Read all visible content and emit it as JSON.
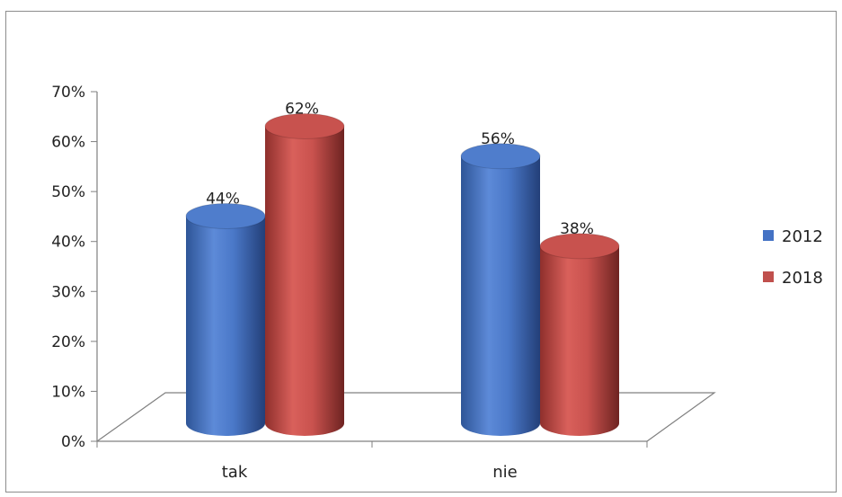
{
  "chart_data": {
    "type": "bar",
    "style": "3d-cylinder",
    "categories": [
      "tak",
      "nie"
    ],
    "series": [
      {
        "name": "2012",
        "values": [
          44,
          56
        ],
        "color": "#4472c4"
      },
      {
        "name": "2018",
        "values": [
          62,
          38
        ],
        "color": "#c0504d"
      }
    ],
    "data_labels": [
      [
        "44%",
        "56%"
      ],
      [
        "62%",
        "38%"
      ]
    ],
    "y_ticks": [
      "0%",
      "10%",
      "20%",
      "30%",
      "40%",
      "50%",
      "60%",
      "70%"
    ],
    "ylim": [
      0,
      70
    ],
    "value_unit": "%",
    "legend_position": "right",
    "grid": false
  }
}
